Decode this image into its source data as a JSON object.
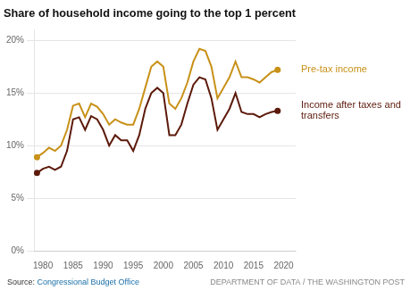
{
  "chart_data": {
    "type": "line",
    "title": "Share of household income going to the top 1 percent",
    "x": [
      1979,
      1980,
      1981,
      1982,
      1983,
      1984,
      1985,
      1986,
      1987,
      1988,
      1989,
      1990,
      1991,
      1992,
      1993,
      1994,
      1995,
      1996,
      1997,
      1998,
      1999,
      2000,
      2001,
      2002,
      2003,
      2004,
      2005,
      2006,
      2007,
      2008,
      2009,
      2010,
      2011,
      2012,
      2013,
      2014,
      2015,
      2016,
      2017,
      2018,
      2019
    ],
    "series": [
      {
        "name": "Pre-tax income",
        "color": "#C89118",
        "values": [
          8.9,
          9.3,
          9.8,
          9.5,
          10.0,
          11.5,
          13.8,
          14.0,
          12.7,
          14.0,
          13.7,
          13.0,
          12.0,
          12.5,
          12.2,
          12.0,
          12.0,
          13.5,
          15.5,
          17.5,
          18.0,
          17.5,
          14.0,
          13.5,
          14.5,
          16.0,
          18.0,
          19.2,
          19.0,
          17.5,
          14.5,
          15.5,
          16.5,
          18.0,
          16.5,
          16.5,
          16.3,
          16.0,
          16.5,
          17.0,
          17.2
        ]
      },
      {
        "name": "Income after taxes and\ntransfers",
        "color": "#5C1A0B",
        "values": [
          7.4,
          7.8,
          8.0,
          7.7,
          8.0,
          9.5,
          12.5,
          12.7,
          11.5,
          12.8,
          12.5,
          11.5,
          10.0,
          11.0,
          10.5,
          10.5,
          9.5,
          11.0,
          13.5,
          15.0,
          15.5,
          15.0,
          11.0,
          11.0,
          12.0,
          14.0,
          15.8,
          16.5,
          16.3,
          14.5,
          11.5,
          12.5,
          13.5,
          15.0,
          13.2,
          13.0,
          13.0,
          12.7,
          13.0,
          13.2,
          13.3
        ]
      }
    ],
    "xlim": [
      1978.5,
      2022
    ],
    "xticks": [
      1980,
      1985,
      1990,
      1995,
      2000,
      2005,
      2010,
      2015,
      2020
    ],
    "ylim": [
      0,
      21
    ],
    "yticks": [
      {
        "value": 0,
        "label": "0%"
      },
      {
        "value": 5,
        "label": "5%"
      },
      {
        "value": 10,
        "label": "10%"
      },
      {
        "value": 15,
        "label": "15%"
      },
      {
        "value": 20,
        "label": "20%"
      }
    ],
    "grid": true,
    "annotations": [
      {
        "text": "Source:",
        "color": "#333333"
      },
      {
        "text": "Congressional Budget Office",
        "color": "#1a6fa8"
      },
      {
        "text": "DEPARTMENT OF DATA / THE WASHINGTON POST",
        "color": "#888888"
      }
    ]
  }
}
